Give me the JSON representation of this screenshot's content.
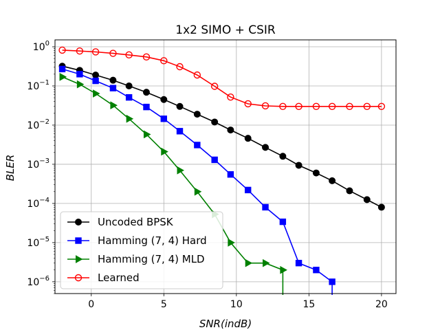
{
  "chart_data": {
    "type": "line",
    "title": "1x2 SIMO + CSIR",
    "xlabel": "SNR(indB)",
    "ylabel": "BLER",
    "xlim": [
      -2.5,
      21.0
    ],
    "ylim": [
      5e-07,
      1.5
    ],
    "yscale": "log",
    "grid": true,
    "legend_position": "lower-left",
    "x_ticks": [
      0,
      5,
      10,
      15,
      20
    ],
    "y_ticks": [
      {
        "value": 1,
        "label": "10^0"
      },
      {
        "value": 0.1,
        "label": "10^-1"
      },
      {
        "value": 0.01,
        "label": "10^-2"
      },
      {
        "value": 0.001,
        "label": "10^-3"
      },
      {
        "value": 0.0001,
        "label": "10^-4"
      },
      {
        "value": 1e-05,
        "label": "10^-5"
      },
      {
        "value": 1e-06,
        "label": "10^-6"
      }
    ],
    "series": [
      {
        "name": "Uncoded BPSK",
        "color": "#000000",
        "marker": "circle-filled",
        "x": [
          -2,
          -0.8,
          0.3,
          1.5,
          2.6,
          3.8,
          5.0,
          6.1,
          7.3,
          8.5,
          9.6,
          10.8,
          12.0,
          13.2,
          14.3,
          15.5,
          16.6,
          17.8,
          19.0,
          20.0
        ],
        "y": [
          0.32,
          0.25,
          0.19,
          0.14,
          0.1,
          0.069,
          0.045,
          0.03,
          0.019,
          0.012,
          0.0075,
          0.0046,
          0.0027,
          0.0016,
          0.00094,
          0.0006,
          0.00038,
          0.00021,
          0.000125,
          8e-05
        ]
      },
      {
        "name": "Hamming (7, 4) Hard",
        "color": "#0000ff",
        "marker": "square-filled",
        "x": [
          -2,
          -0.8,
          0.3,
          1.5,
          2.6,
          3.8,
          5.0,
          6.1,
          7.3,
          8.5,
          9.6,
          10.8,
          12.0,
          13.2,
          14.3,
          15.5,
          16.6
        ],
        "y": [
          0.27,
          0.2,
          0.135,
          0.088,
          0.051,
          0.029,
          0.0145,
          0.007,
          0.0031,
          0.0013,
          0.00055,
          0.00022,
          8e-05,
          3.4e-05,
          3e-06,
          2e-06,
          1e-06
        ],
        "end_drop": true
      },
      {
        "name": "Hamming (7, 4) MLD",
        "color": "#008000",
        "marker": "triangle-right-filled",
        "x": [
          -2,
          -0.8,
          0.3,
          1.5,
          2.6,
          3.8,
          5.0,
          6.1,
          7.3,
          8.5,
          9.6,
          10.8,
          12.0,
          13.2
        ],
        "y": [
          0.17,
          0.11,
          0.064,
          0.032,
          0.0145,
          0.0058,
          0.0021,
          0.0007,
          0.0002,
          5.3e-05,
          1e-05,
          3e-06,
          3e-06,
          2e-06
        ],
        "end_drop": true
      },
      {
        "name": "Learned",
        "color": "#ff0000",
        "marker": "circle-open",
        "x": [
          -2,
          -0.8,
          0.3,
          1.5,
          2.6,
          3.8,
          5.0,
          6.1,
          7.3,
          8.5,
          9.6,
          10.8,
          12.0,
          13.2,
          14.3,
          15.5,
          16.6,
          17.8,
          19.0,
          20.0
        ],
        "y": [
          0.82,
          0.78,
          0.74,
          0.68,
          0.62,
          0.55,
          0.44,
          0.31,
          0.19,
          0.098,
          0.052,
          0.035,
          0.031,
          0.03,
          0.03,
          0.03,
          0.03,
          0.03,
          0.03,
          0.03
        ]
      }
    ]
  }
}
